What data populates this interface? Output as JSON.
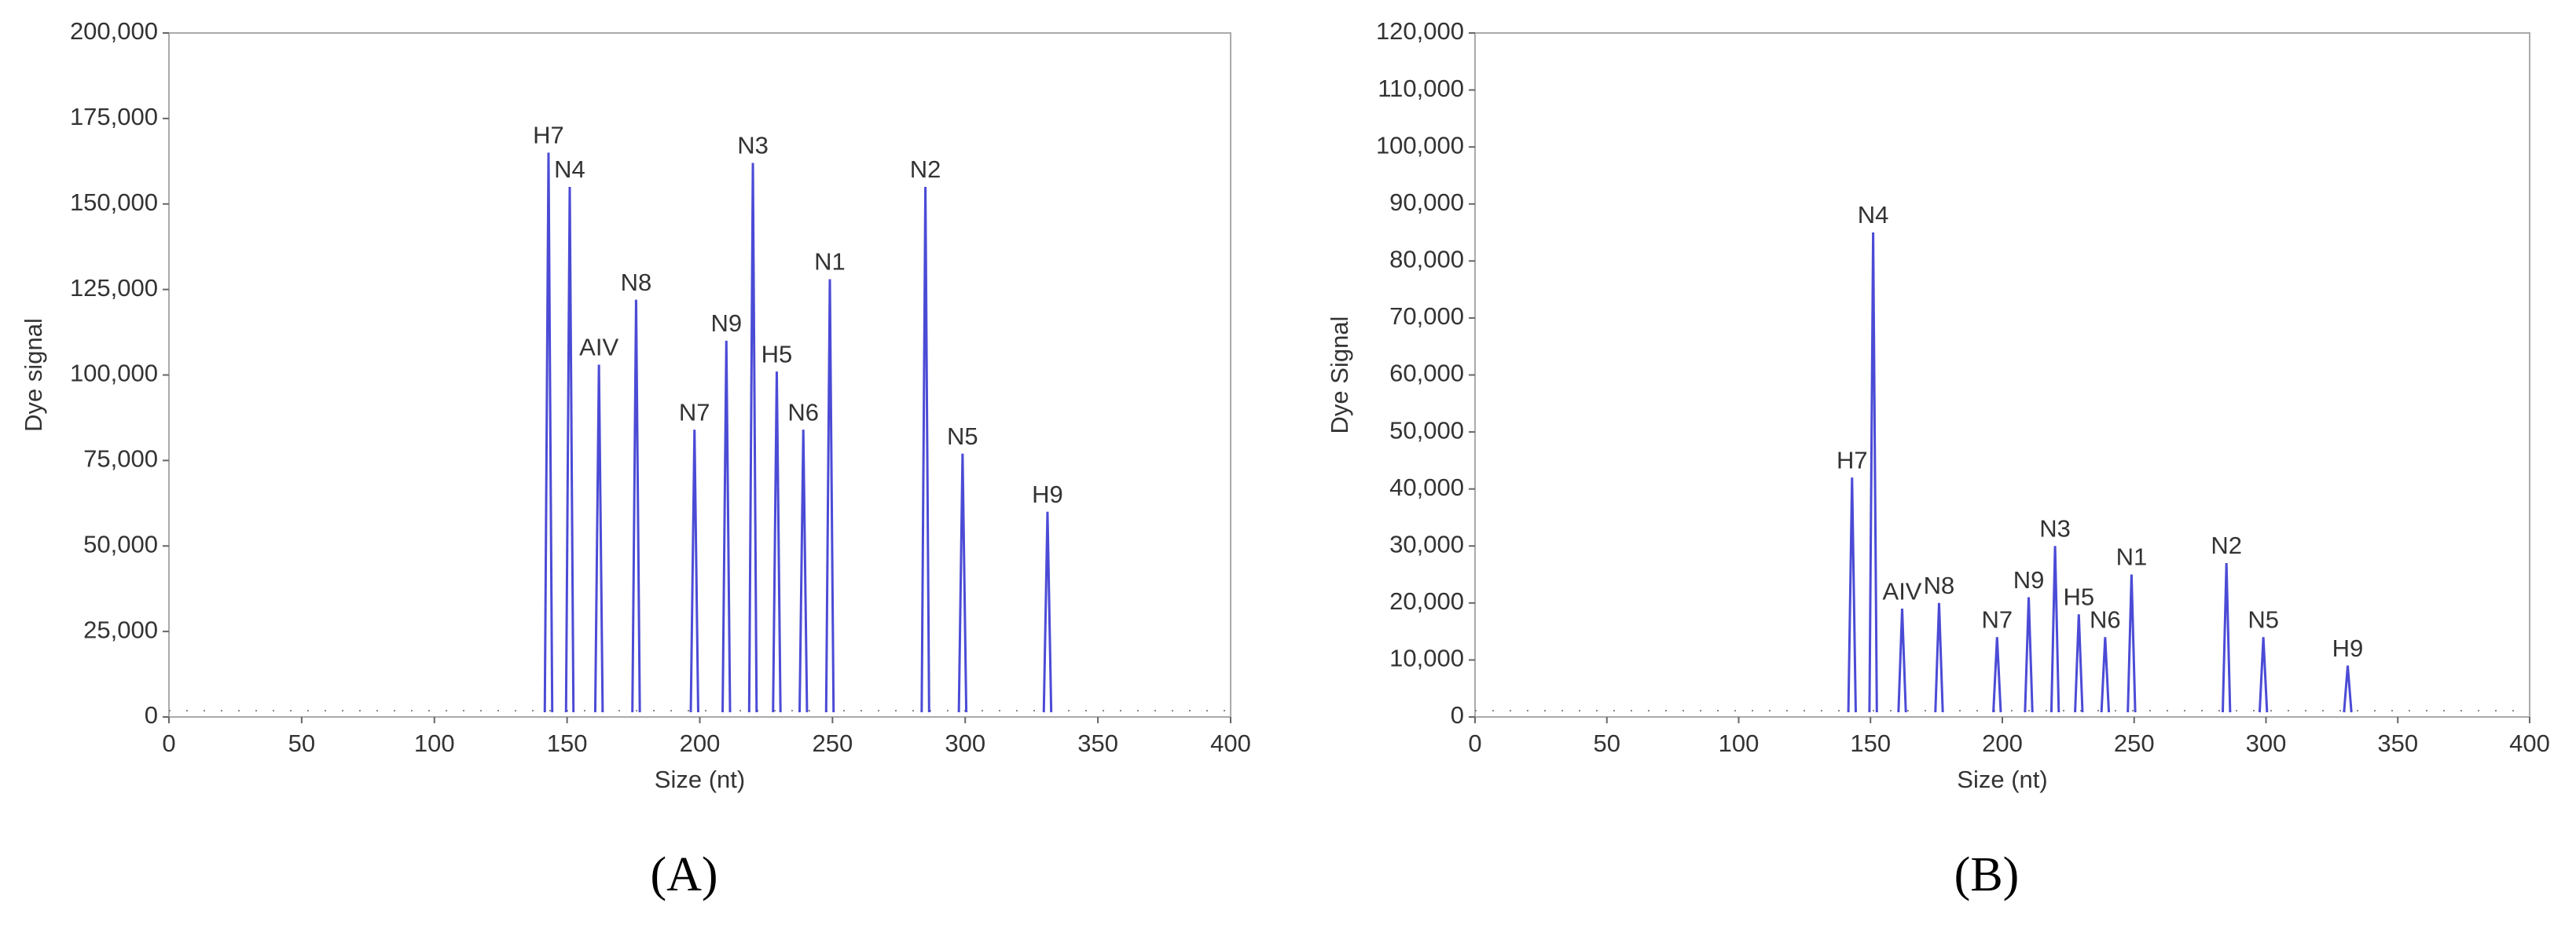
{
  "chart_data": [
    {
      "type": "peaks",
      "panel_label": "(A)",
      "x_label": "Size (nt)",
      "y_label": "Dye signal",
      "color": "#4b4bd6",
      "xlim": [
        0,
        400
      ],
      "xticks": [
        0,
        50,
        100,
        150,
        200,
        250,
        300,
        350,
        400
      ],
      "ylim": [
        0,
        200000
      ],
      "yticks": [
        0,
        {
          "value": 25000,
          "label": "25,000"
        },
        {
          "value": 50000,
          "label": "50,000"
        },
        {
          "value": 75000,
          "label": "75,000"
        },
        {
          "value": 100000,
          "label": "100,000"
        },
        {
          "value": 125000,
          "label": "125,000"
        },
        {
          "value": 150000,
          "label": "150,000"
        },
        {
          "value": 175000,
          "label": "175,000"
        },
        {
          "value": 200000,
          "label": "200,000"
        }
      ],
      "peak_labels": [
        "H7",
        "N4",
        "AIV",
        "N8",
        "N7",
        "N9",
        "N3",
        "H5",
        "N6",
        "N1",
        "N2",
        "N5",
        "H9"
      ],
      "x": [
        143,
        151,
        162,
        176,
        198,
        210,
        220,
        229,
        239,
        249,
        285,
        299,
        331
      ],
      "values": [
        165000,
        155000,
        103000,
        122000,
        84000,
        110000,
        162000,
        101000,
        84000,
        128000,
        155000,
        77000,
        60000
      ]
    },
    {
      "type": "peaks",
      "panel_label": "(B)",
      "x_label": "Size (nt)",
      "y_label": "Dye Signal",
      "color": "#4b4bd6",
      "xlim": [
        0,
        400
      ],
      "xticks": [
        0,
        50,
        100,
        150,
        200,
        250,
        300,
        350,
        400
      ],
      "ylim": [
        0,
        120000
      ],
      "yticks": [
        0,
        {
          "value": 10000,
          "label": "10,000"
        },
        {
          "value": 20000,
          "label": "20,000"
        },
        {
          "value": 30000,
          "label": "30,000"
        },
        {
          "value": 40000,
          "label": "40,000"
        },
        {
          "value": 50000,
          "label": "50,000"
        },
        {
          "value": 60000,
          "label": "60,000"
        },
        {
          "value": 70000,
          "label": "70,000"
        },
        {
          "value": 80000,
          "label": "80,000"
        },
        {
          "value": 90000,
          "label": "90,000"
        },
        {
          "value": 100000,
          "label": "100,000"
        },
        {
          "value": 110000,
          "label": "110,000"
        },
        {
          "value": 120000,
          "label": "120,000"
        }
      ],
      "peak_labels": [
        "H7",
        "N4",
        "AIV",
        "N8",
        "N7",
        "N9",
        "N3",
        "H5",
        "N6",
        "N1",
        "N2",
        "N5",
        "H9"
      ],
      "x": [
        143,
        151,
        162,
        176,
        198,
        210,
        220,
        229,
        239,
        249,
        285,
        299,
        331
      ],
      "values": [
        42000,
        85000,
        19000,
        20000,
        14000,
        21000,
        30000,
        18000,
        14000,
        25000,
        27000,
        14000,
        9000
      ]
    }
  ]
}
